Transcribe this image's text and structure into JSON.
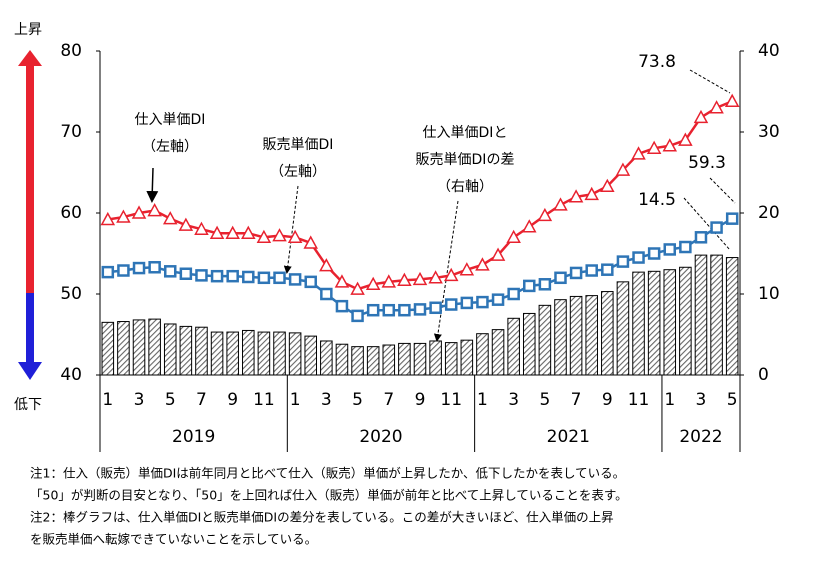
{
  "chart_data": {
    "type": "combo",
    "categories": [
      "1",
      null,
      "3",
      null,
      "5",
      null,
      "7",
      null,
      "9",
      null,
      "11",
      null,
      "1",
      null,
      "3",
      null,
      "5",
      null,
      "7",
      null,
      "9",
      null,
      "11",
      null,
      "1",
      null,
      "3",
      null,
      "5",
      null,
      "7",
      null,
      "9",
      null,
      "11",
      null,
      "1",
      null,
      "3",
      null,
      "5"
    ],
    "years": [
      "2019",
      "2020",
      "2021",
      "2022"
    ],
    "series": [
      {
        "type": "line",
        "marker": "triangle",
        "color": "#e8222f",
        "values": [
          59.2,
          59.5,
          60.0,
          60.3,
          59.3,
          58.5,
          58.0,
          57.5,
          57.5,
          57.5,
          57.0,
          57.2,
          57.0,
          56.3,
          53.5,
          51.5,
          50.6,
          51.2,
          51.5,
          51.7,
          51.8,
          52.0,
          52.3,
          53.0,
          53.6,
          54.8,
          57.0,
          58.3,
          59.7,
          61.0,
          62.0,
          62.3,
          63.3,
          65.3,
          67.3,
          68.0,
          68.3,
          69.0,
          71.8,
          73.0,
          73.8
        ]
      },
      {
        "type": "line",
        "marker": "square",
        "color": "#2e75b6",
        "values": [
          52.7,
          52.9,
          53.2,
          53.3,
          52.8,
          52.5,
          52.3,
          52.2,
          52.2,
          52.1,
          52.0,
          52.0,
          51.8,
          51.5,
          50.0,
          48.5,
          47.3,
          48.0,
          48.0,
          48.0,
          48.1,
          48.3,
          48.7,
          48.9,
          49.0,
          49.3,
          50.0,
          51.0,
          51.2,
          52.0,
          52.6,
          52.9,
          53.0,
          54.0,
          54.5,
          55.0,
          55.5,
          55.8,
          57.0,
          58.2,
          59.3
        ]
      },
      {
        "type": "bar",
        "axis": "y2",
        "color": "#555555",
        "values": [
          6.5,
          6.6,
          6.8,
          6.9,
          6.3,
          6.0,
          5.9,
          5.3,
          5.3,
          5.5,
          5.3,
          5.3,
          5.2,
          4.8,
          4.2,
          3.8,
          3.5,
          3.5,
          3.7,
          3.9,
          3.9,
          4.2,
          4.0,
          4.3,
          5.1,
          5.6,
          7.0,
          7.6,
          8.6,
          9.3,
          9.7,
          9.8,
          10.3,
          11.5,
          12.7,
          12.8,
          13.0,
          13.3,
          14.8,
          14.8,
          14.5
        ]
      }
    ],
    "ylim": [
      40,
      80
    ],
    "yticks": [
      40,
      50,
      60,
      70,
      80
    ],
    "y2lim": [
      0,
      40
    ],
    "y2ticks": [
      0,
      10,
      20,
      30,
      40
    ],
    "rise_label": "上昇",
    "fall_label": "低下",
    "annotations": [
      [
        "仕入単価DI",
        "（左軸）"
      ],
      [
        "販売単価DI",
        "（左軸）"
      ],
      [
        "仕入単価DIと",
        "販売単価DIの差",
        "（右軸）"
      ]
    ],
    "notes": [
      "注1：仕入（販売）単価DIは前年同月と比べて仕入（販売）単価が上昇したか、低下したかを表している。",
      "「50」が判断の目安となり、「50」を上回れば仕入（販売）単価が前年と比べて上昇していることを表す。",
      "注2：棒グラフは、仕入単価DIと販売単価DIの差分を表している。この差が大きいほど、仕入単価の上昇",
      "を販売単価へ転嫁できていないことを示している。"
    ]
  }
}
